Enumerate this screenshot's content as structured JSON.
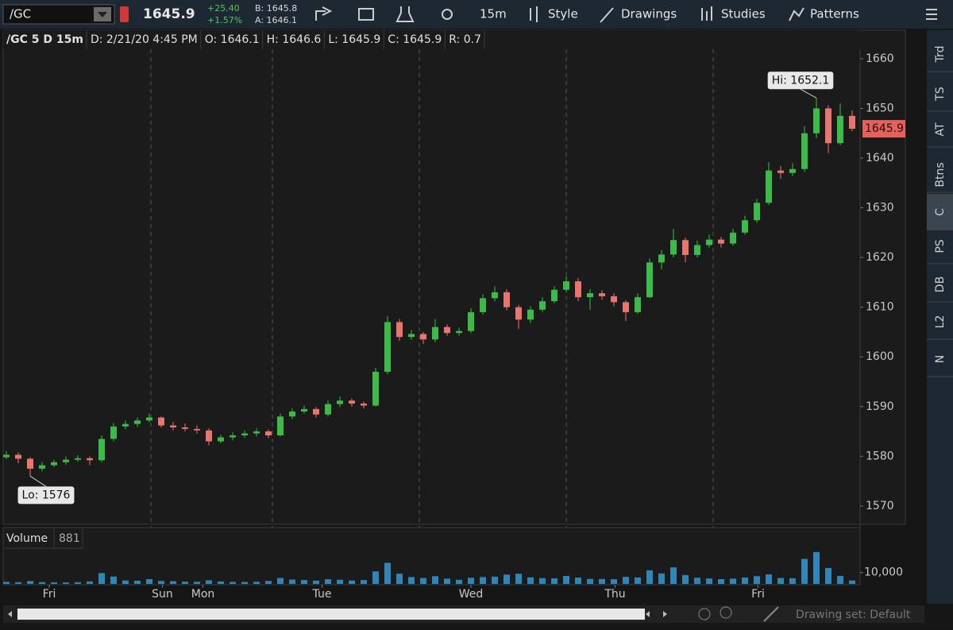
{
  "toolbar": {
    "symbol": "/GC",
    "last": "1645.9",
    "change": "+25.40",
    "change_pct": "+1.57%",
    "bid": "B: 1645.8",
    "ask": "A: 1646.1",
    "interval": "15m",
    "buttons": [
      "Style",
      "Drawings",
      "Studies",
      "Patterns"
    ]
  },
  "legend_bar": [
    "/GC 5 D 15m",
    "D: 2/21/20 4:45 PM",
    "O: 1646.1",
    "H: 1646.6",
    "L: 1645.9",
    "C: 1645.9",
    "R: 0.7"
  ],
  "sidebar": [
    "Trd",
    "TS",
    "AT",
    "Btns",
    "C",
    "PS",
    "DB",
    "L2",
    "N"
  ],
  "footer": {
    "drawing_set": "Drawing set: Default"
  },
  "chart_data": {
    "type": "candlestick",
    "up_color": "#3dbb49",
    "down_color": "#e8756e",
    "candles": [
      [
        1579.8,
        1581.0,
        1579.4,
        1580.3
      ],
      [
        1580.3,
        1580.8,
        1578.6,
        1579.5
      ],
      [
        1579.5,
        1579.8,
        1576.0,
        1577.5
      ],
      [
        1577.5,
        1578.8,
        1577.0,
        1578.2
      ],
      [
        1578.2,
        1579.3,
        1577.8,
        1578.8
      ],
      [
        1578.8,
        1579.9,
        1578.3,
        1579.3
      ],
      [
        1579.3,
        1580.2,
        1578.9,
        1579.6
      ],
      [
        1579.6,
        1580.0,
        1578.2,
        1579.2
      ],
      [
        1579.2,
        1584.2,
        1578.8,
        1583.5
      ],
      [
        1583.5,
        1586.7,
        1583.0,
        1586.0
      ],
      [
        1586.0,
        1587.2,
        1585.4,
        1586.5
      ],
      [
        1586.5,
        1587.8,
        1585.9,
        1587.2
      ],
      [
        1587.2,
        1588.6,
        1586.8,
        1587.8
      ],
      [
        1587.8,
        1588.0,
        1585.8,
        1586.2
      ],
      [
        1586.2,
        1586.9,
        1585.2,
        1585.8
      ],
      [
        1585.8,
        1586.6,
        1585.0,
        1585.5
      ],
      [
        1585.5,
        1586.2,
        1584.6,
        1585.2
      ],
      [
        1585.2,
        1585.6,
        1582.2,
        1583.0
      ],
      [
        1583.0,
        1584.3,
        1582.6,
        1583.8
      ],
      [
        1583.8,
        1584.8,
        1583.2,
        1584.2
      ],
      [
        1584.2,
        1585.2,
        1583.7,
        1584.6
      ],
      [
        1584.6,
        1585.6,
        1584.0,
        1585.0
      ],
      [
        1585.0,
        1585.4,
        1583.6,
        1584.2
      ],
      [
        1584.2,
        1588.6,
        1584.0,
        1588.0
      ],
      [
        1588.0,
        1589.6,
        1587.5,
        1589.0
      ],
      [
        1589.0,
        1590.2,
        1588.6,
        1589.5
      ],
      [
        1589.5,
        1589.9,
        1587.8,
        1588.4
      ],
      [
        1588.4,
        1591.2,
        1588.0,
        1590.5
      ],
      [
        1590.5,
        1592.0,
        1589.9,
        1591.2
      ],
      [
        1591.2,
        1591.6,
        1590.0,
        1590.6
      ],
      [
        1590.6,
        1591.0,
        1589.6,
        1590.2
      ],
      [
        1590.2,
        1597.8,
        1590.0,
        1597.0
      ],
      [
        1597.0,
        1608.2,
        1596.5,
        1607.0
      ],
      [
        1607.0,
        1607.6,
        1603.2,
        1604.0
      ],
      [
        1604.0,
        1605.4,
        1603.4,
        1604.6
      ],
      [
        1604.6,
        1605.0,
        1602.6,
        1603.5
      ],
      [
        1603.5,
        1607.6,
        1603.0,
        1606.0
      ],
      [
        1606.0,
        1606.5,
        1604.2,
        1604.8
      ],
      [
        1604.8,
        1605.9,
        1604.3,
        1605.2
      ],
      [
        1605.2,
        1609.8,
        1604.8,
        1609.0
      ],
      [
        1609.0,
        1612.6,
        1608.5,
        1611.8
      ],
      [
        1611.8,
        1614.2,
        1611.2,
        1613.0
      ],
      [
        1613.0,
        1613.6,
        1609.4,
        1610.0
      ],
      [
        1610.0,
        1610.5,
        1605.6,
        1607.5
      ],
      [
        1607.5,
        1610.2,
        1606.8,
        1609.5
      ],
      [
        1609.5,
        1612.0,
        1609.0,
        1611.2
      ],
      [
        1611.2,
        1614.2,
        1610.8,
        1613.5
      ],
      [
        1613.5,
        1616.2,
        1613.0,
        1615.2
      ],
      [
        1615.2,
        1615.8,
        1611.2,
        1612.0
      ],
      [
        1612.0,
        1613.6,
        1609.4,
        1612.8
      ],
      [
        1612.8,
        1613.4,
        1611.5,
        1612.2
      ],
      [
        1612.2,
        1612.8,
        1610.2,
        1611.0
      ],
      [
        1611.0,
        1611.4,
        1607.2,
        1609.0
      ],
      [
        1609.0,
        1612.8,
        1608.6,
        1612.0
      ],
      [
        1612.0,
        1619.8,
        1611.8,
        1619.0
      ],
      [
        1619.0,
        1621.5,
        1617.6,
        1620.6
      ],
      [
        1620.6,
        1625.8,
        1620.0,
        1623.5
      ],
      [
        1623.5,
        1624.0,
        1619.0,
        1620.5
      ],
      [
        1620.5,
        1623.4,
        1620.0,
        1622.5
      ],
      [
        1622.5,
        1624.6,
        1622.0,
        1623.6
      ],
      [
        1623.6,
        1624.2,
        1622.0,
        1622.8
      ],
      [
        1622.8,
        1625.8,
        1622.4,
        1625.0
      ],
      [
        1625.0,
        1628.4,
        1624.6,
        1627.5
      ],
      [
        1627.5,
        1631.8,
        1627.0,
        1631.0
      ],
      [
        1631.0,
        1639.2,
        1630.6,
        1637.5
      ],
      [
        1637.5,
        1638.4,
        1635.8,
        1637.0
      ],
      [
        1637.0,
        1639.0,
        1636.4,
        1637.8
      ],
      [
        1637.8,
        1646.4,
        1637.2,
        1645.0
      ],
      [
        1645.0,
        1652.1,
        1644.0,
        1650.0
      ],
      [
        1650.0,
        1650.6,
        1641.0,
        1643.0
      ],
      [
        1643.0,
        1651.0,
        1642.6,
        1648.5
      ],
      [
        1648.5,
        1649.6,
        1645.4,
        1645.9
      ]
    ],
    "ylim": [
      1566.3,
      1661.9
    ],
    "yticks": [
      1570,
      1580,
      1590,
      1600,
      1610,
      1620,
      1630,
      1640,
      1650,
      1660
    ],
    "xticks": [
      {
        "value": 3.6,
        "label": "Fri"
      },
      {
        "value": 13.1,
        "label": "Sun"
      },
      {
        "value": 16.5,
        "label": "Mon"
      },
      {
        "value": 26.5,
        "label": "Tue"
      },
      {
        "value": 39,
        "label": "Wed"
      },
      {
        "value": 51.1,
        "label": "Thu"
      },
      {
        "value": 63.1,
        "label": "Fri"
      }
    ],
    "annotations": {
      "high": "Hi: 1652.1",
      "low": "Lo: 1576"
    },
    "last_price_label": "1645.9",
    "volume": {
      "label": "Volume",
      "last": "881",
      "color": "#2f86b8",
      "values": [
        1800,
        1500,
        2500,
        1600,
        1400,
        1300,
        1500,
        2200,
        9500,
        6500,
        3000,
        2800,
        4200,
        2600,
        2400,
        2000,
        1900,
        3200,
        2100,
        1800,
        1700,
        1900,
        2600,
        5200,
        3800,
        3400,
        2900,
        4100,
        3700,
        3000,
        3400,
        11000,
        18500,
        9000,
        6000,
        5200,
        6800,
        4600,
        3600,
        5400,
        6000,
        6400,
        8200,
        9000,
        5800,
        5100,
        4900,
        7000,
        5600,
        4400,
        4300,
        4100,
        6200,
        5600,
        12000,
        9200,
        14500,
        7800,
        5400,
        4800,
        4200,
        4600,
        5600,
        6800,
        8400,
        5200,
        5000,
        22000,
        28000,
        14000,
        7000,
        3000
      ],
      "ylim": [
        0,
        30000
      ],
      "yticks": [
        {
          "value": 10000,
          "label": "10,000"
        }
      ]
    }
  }
}
